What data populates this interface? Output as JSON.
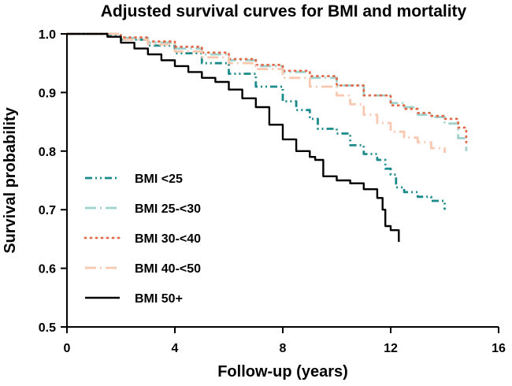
{
  "chart_data": {
    "type": "line",
    "title": "Adjusted survival curves for BMI and mortality",
    "xlabel": "Follow-up (years)",
    "ylabel": "Survival probability",
    "xlim": [
      0,
      16
    ],
    "ylim": [
      0.5,
      1.0
    ],
    "xticks": [
      0,
      4,
      8,
      12,
      16
    ],
    "xtick_labels": [
      "0",
      "4",
      "8",
      "12",
      "16"
    ],
    "yticks": [
      0.5,
      0.6,
      0.7,
      0.8,
      0.9,
      1.0
    ],
    "ytick_labels": [
      "0.5",
      "0.6",
      "0.7",
      "0.8",
      "0.9",
      "1.0"
    ],
    "legend_position": "left-center",
    "series": [
      {
        "name": "BMI <25",
        "color": "#1b8a8a",
        "dash": "dash-dot-dot",
        "points": [
          [
            0,
            1.0
          ],
          [
            1,
            1.0
          ],
          [
            1.5,
            0.997
          ],
          [
            2,
            0.99
          ],
          [
            3,
            0.98
          ],
          [
            4,
            0.967
          ],
          [
            5,
            0.95
          ],
          [
            6,
            0.932
          ],
          [
            7,
            0.91
          ],
          [
            8,
            0.885
          ],
          [
            8.5,
            0.87
          ],
          [
            9,
            0.855
          ],
          [
            9.3,
            0.838
          ],
          [
            10,
            0.83
          ],
          [
            10.5,
            0.81
          ],
          [
            11,
            0.795
          ],
          [
            11.5,
            0.785
          ],
          [
            11.8,
            0.77
          ],
          [
            12,
            0.76
          ],
          [
            12.2,
            0.738
          ],
          [
            12.5,
            0.73
          ],
          [
            13,
            0.722
          ],
          [
            13.5,
            0.715
          ],
          [
            14,
            0.7
          ]
        ]
      },
      {
        "name": "BMI 25-<30",
        "color": "#9fd2cc",
        "dash": "long-dash-dot",
        "points": [
          [
            0,
            1.0
          ],
          [
            1,
            1.0
          ],
          [
            2,
            0.993
          ],
          [
            3,
            0.985
          ],
          [
            4,
            0.975
          ],
          [
            5,
            0.965
          ],
          [
            6,
            0.955
          ],
          [
            7,
            0.945
          ],
          [
            8,
            0.935
          ],
          [
            9,
            0.925
          ],
          [
            10,
            0.912
          ],
          [
            11,
            0.895
          ],
          [
            12,
            0.882
          ],
          [
            12.5,
            0.875
          ],
          [
            13,
            0.862
          ],
          [
            13.5,
            0.858
          ],
          [
            14,
            0.847
          ],
          [
            14.5,
            0.822
          ],
          [
            14.8,
            0.8
          ]
        ]
      },
      {
        "name": "BMI 30-<40",
        "color": "#e06a4a",
        "dash": "dotted",
        "points": [
          [
            0,
            1.0
          ],
          [
            1,
            1.0
          ],
          [
            2,
            0.994
          ],
          [
            3,
            0.987
          ],
          [
            4,
            0.978
          ],
          [
            5,
            0.968
          ],
          [
            6,
            0.957
          ],
          [
            7,
            0.947
          ],
          [
            8,
            0.937
          ],
          [
            9,
            0.928
          ],
          [
            10,
            0.912
          ],
          [
            11,
            0.895
          ],
          [
            12,
            0.878
          ],
          [
            12.5,
            0.872
          ],
          [
            13,
            0.865
          ],
          [
            13.5,
            0.86
          ],
          [
            14,
            0.855
          ],
          [
            14.5,
            0.84
          ],
          [
            14.8,
            0.815
          ]
        ]
      },
      {
        "name": "BMI 40-<50",
        "color": "#f9c8b0",
        "dash": "long-dash-dot",
        "points": [
          [
            0,
            1.0
          ],
          [
            1,
            1.0
          ],
          [
            2,
            0.99
          ],
          [
            3,
            0.982
          ],
          [
            4,
            0.97
          ],
          [
            5,
            0.96
          ],
          [
            6,
            0.95
          ],
          [
            7,
            0.94
          ],
          [
            8,
            0.925
          ],
          [
            9,
            0.91
          ],
          [
            10,
            0.895
          ],
          [
            10.5,
            0.88
          ],
          [
            11,
            0.862
          ],
          [
            11.5,
            0.848
          ],
          [
            12,
            0.833
          ],
          [
            12.5,
            0.823
          ],
          [
            13,
            0.815
          ],
          [
            13.5,
            0.805
          ],
          [
            14,
            0.797
          ]
        ]
      },
      {
        "name": "BMI 50+",
        "color": "#000000",
        "dash": "solid",
        "points": [
          [
            0,
            1.0
          ],
          [
            1,
            1.0
          ],
          [
            1.5,
            0.995
          ],
          [
            2,
            0.985
          ],
          [
            2.5,
            0.975
          ],
          [
            3,
            0.965
          ],
          [
            3.5,
            0.955
          ],
          [
            4,
            0.945
          ],
          [
            4.5,
            0.935
          ],
          [
            5,
            0.925
          ],
          [
            5.5,
            0.918
          ],
          [
            6,
            0.905
          ],
          [
            6.5,
            0.89
          ],
          [
            7,
            0.875
          ],
          [
            7.5,
            0.845
          ],
          [
            8,
            0.82
          ],
          [
            8.5,
            0.8
          ],
          [
            9,
            0.79
          ],
          [
            9.2,
            0.785
          ],
          [
            9.5,
            0.757
          ],
          [
            10,
            0.75
          ],
          [
            10.5,
            0.745
          ],
          [
            11,
            0.735
          ],
          [
            11.5,
            0.72
          ],
          [
            11.7,
            0.7
          ],
          [
            11.8,
            0.672
          ],
          [
            12,
            0.665
          ],
          [
            12.3,
            0.645
          ]
        ]
      }
    ]
  }
}
